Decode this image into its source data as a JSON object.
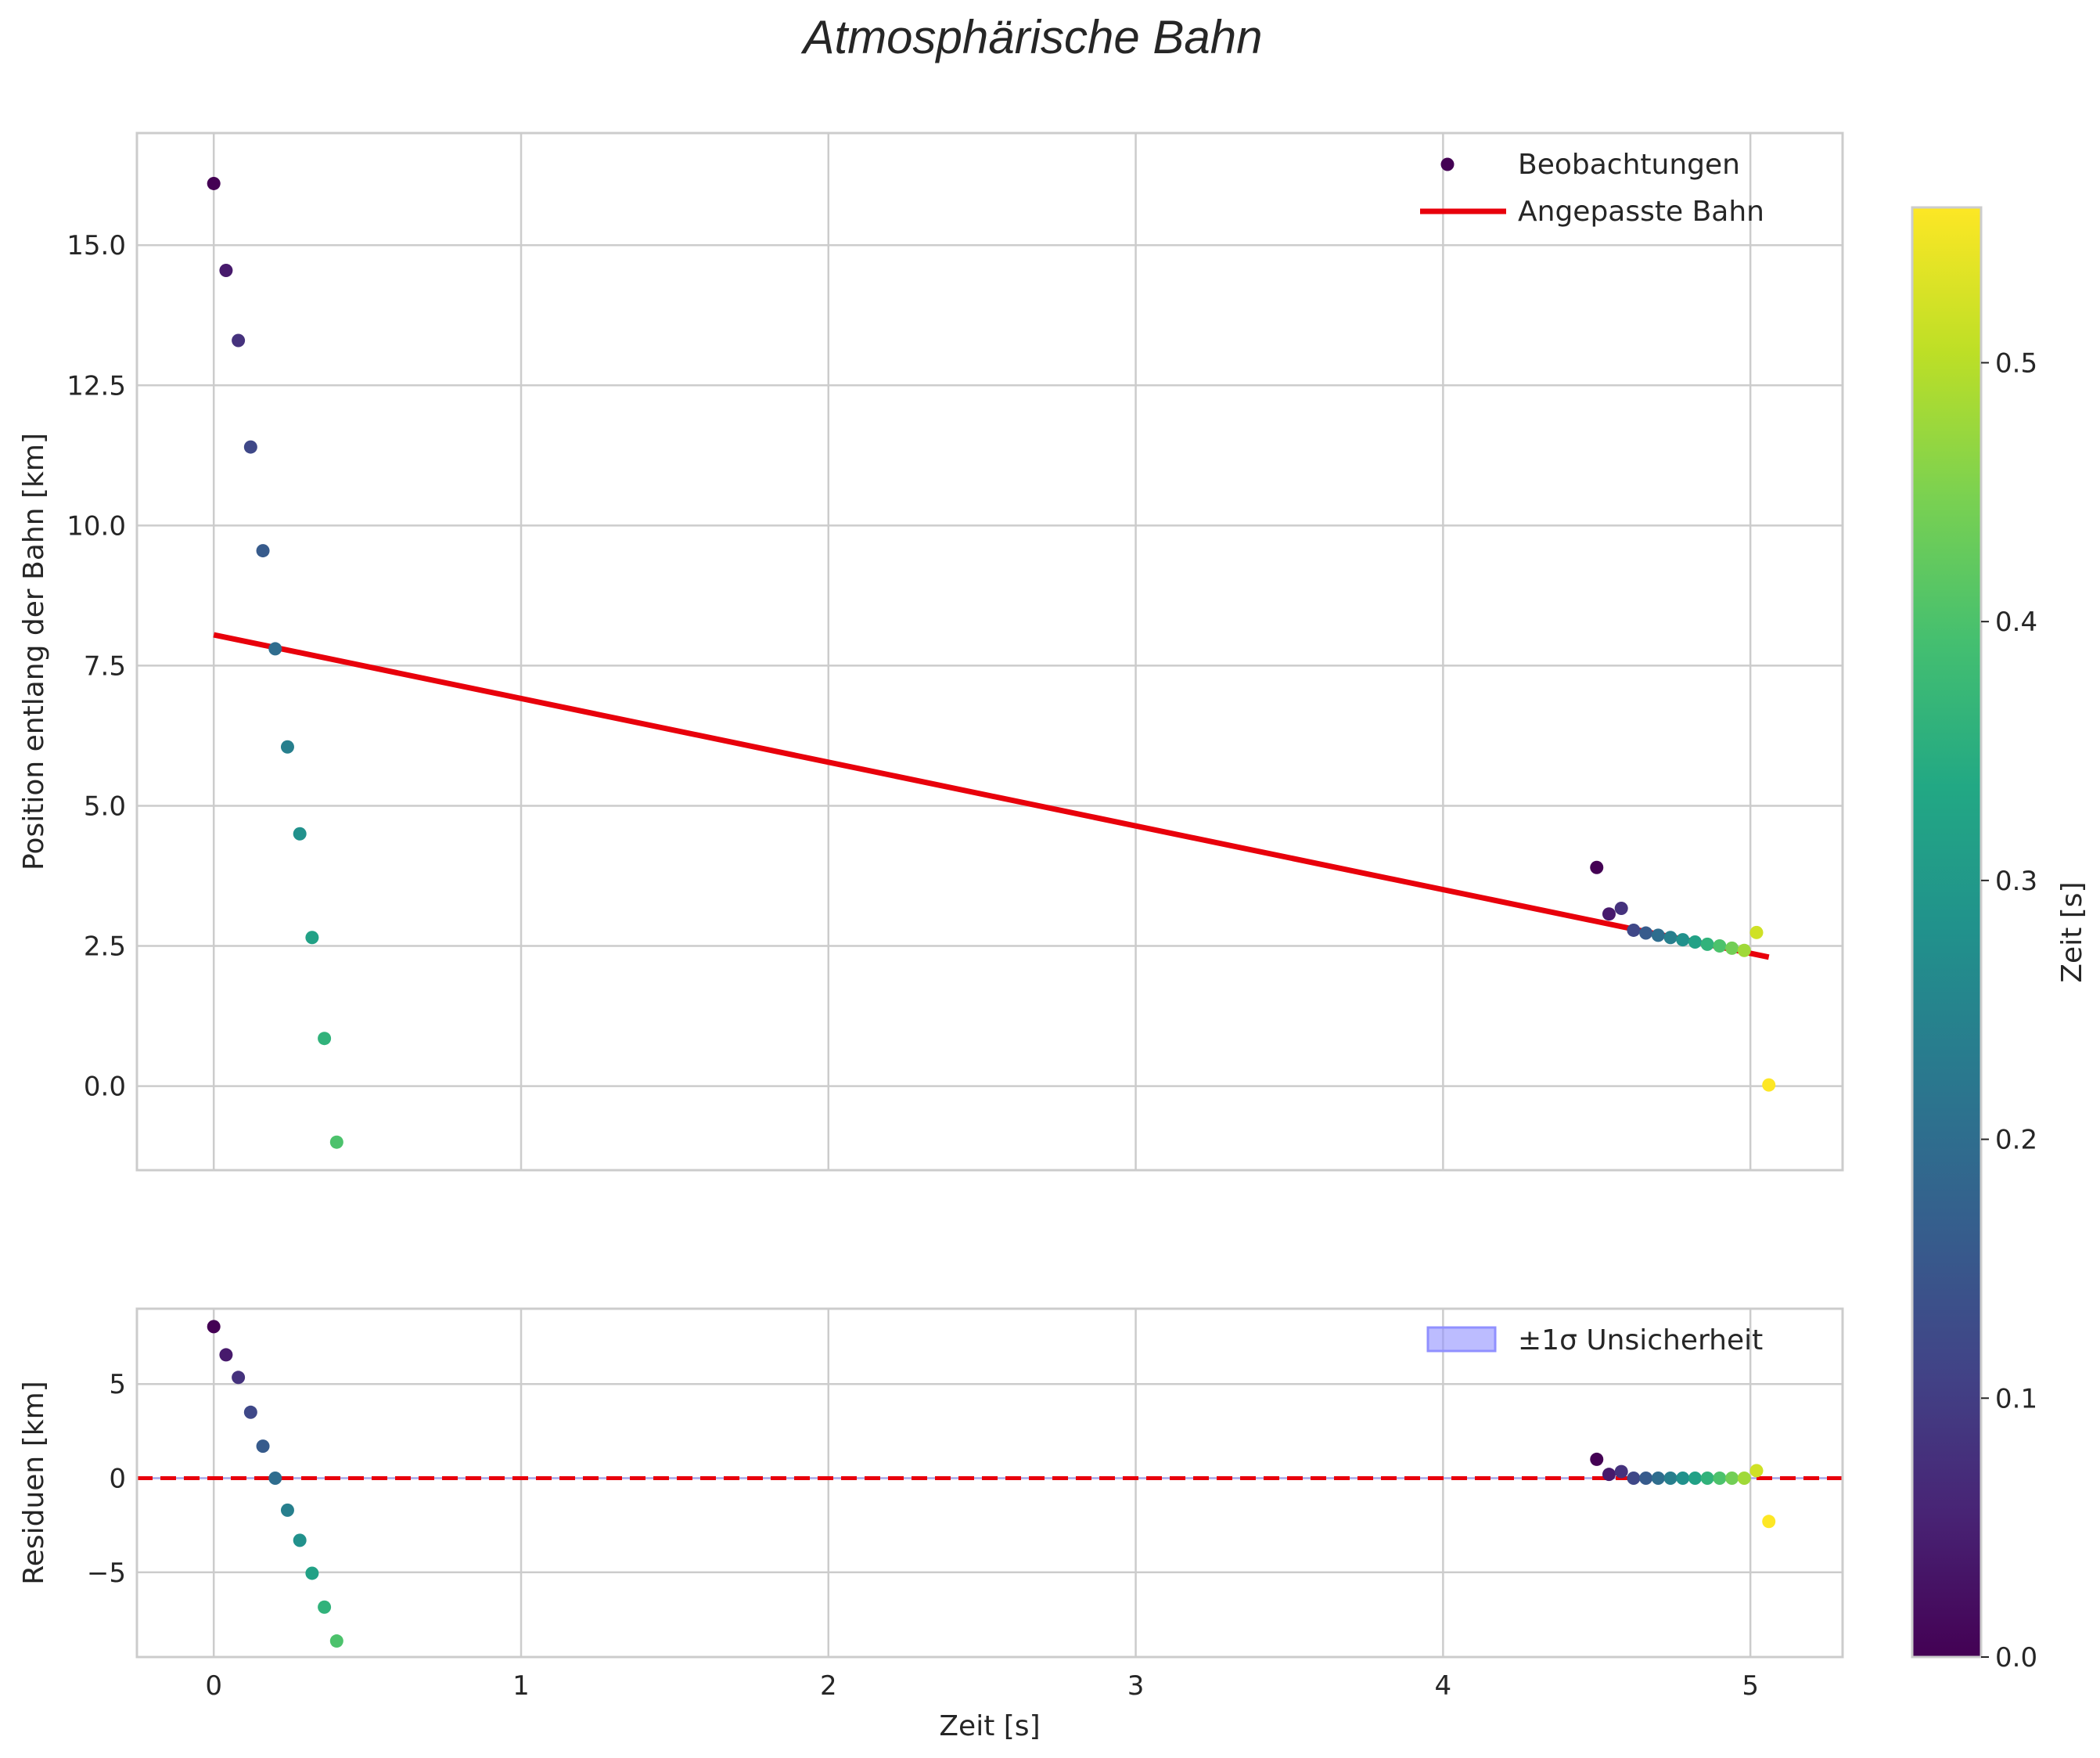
{
  "title": "Atmosphärische Bahn",
  "chart_data": [
    {
      "id": "main",
      "type": "scatter",
      "xlabel": "",
      "ylabel": "Position entlang der Bahn [km]",
      "xlim": [
        -0.25,
        5.3
      ],
      "ylim": [
        -1.5,
        17.0
      ],
      "xticks": [
        0,
        1,
        2,
        3,
        4,
        5
      ],
      "yticks": [
        0.0,
        2.5,
        5.0,
        7.5,
        10.0,
        12.5,
        15.0
      ],
      "ytick_labels": [
        "0.0",
        "2.5",
        "5.0",
        "7.5",
        "10.0",
        "12.5",
        "15.0"
      ],
      "grid": true,
      "legend": {
        "position": "top-right",
        "entries": [
          {
            "label": "Beobachtungen",
            "kind": "marker",
            "color": "#440154"
          },
          {
            "label": "Angepasste Bahn",
            "kind": "line",
            "color": "#e8000b"
          }
        ]
      },
      "fit_line": {
        "name": "Angepasste Bahn",
        "color": "#e8000b",
        "x": [
          0.0,
          5.06
        ],
        "y": [
          8.05,
          2.3
        ]
      },
      "series": [
        {
          "name": "Beobachtungen",
          "colormap": "viridis",
          "points": [
            {
              "x": 0.0,
              "y": 16.1,
              "c": 0.0
            },
            {
              "x": 0.04,
              "y": 14.55,
              "c": 0.04
            },
            {
              "x": 0.08,
              "y": 13.3,
              "c": 0.08
            },
            {
              "x": 0.12,
              "y": 11.4,
              "c": 0.12
            },
            {
              "x": 0.16,
              "y": 9.55,
              "c": 0.16
            },
            {
              "x": 0.2,
              "y": 7.8,
              "c": 0.2
            },
            {
              "x": 0.24,
              "y": 6.05,
              "c": 0.24
            },
            {
              "x": 0.28,
              "y": 4.5,
              "c": 0.28
            },
            {
              "x": 0.32,
              "y": 2.65,
              "c": 0.32
            },
            {
              "x": 0.36,
              "y": 0.85,
              "c": 0.36
            },
            {
              "x": 0.4,
              "y": -1.0,
              "c": 0.4
            },
            {
              "x": 4.5,
              "y": 3.9,
              "c": 0.0
            },
            {
              "x": 4.54,
              "y": 3.07,
              "c": 0.04
            },
            {
              "x": 4.58,
              "y": 3.17,
              "c": 0.08
            },
            {
              "x": 4.62,
              "y": 2.78,
              "c": 0.12
            },
            {
              "x": 4.66,
              "y": 2.73,
              "c": 0.16
            },
            {
              "x": 4.7,
              "y": 2.69,
              "c": 0.2
            },
            {
              "x": 4.74,
              "y": 2.65,
              "c": 0.24
            },
            {
              "x": 4.78,
              "y": 2.61,
              "c": 0.28
            },
            {
              "x": 4.82,
              "y": 2.57,
              "c": 0.32
            },
            {
              "x": 4.86,
              "y": 2.53,
              "c": 0.36
            },
            {
              "x": 4.9,
              "y": 2.5,
              "c": 0.4
            },
            {
              "x": 4.94,
              "y": 2.46,
              "c": 0.44
            },
            {
              "x": 4.98,
              "y": 2.42,
              "c": 0.48
            },
            {
              "x": 5.02,
              "y": 2.74,
              "c": 0.52
            },
            {
              "x": 5.06,
              "y": 0.02,
              "c": 0.56
            }
          ]
        }
      ]
    },
    {
      "id": "residuals",
      "type": "scatter",
      "xlabel": "Zeit [s]",
      "ylabel": "Residuen [km]",
      "xlim": [
        -0.25,
        5.3
      ],
      "ylim": [
        -9.5,
        9.0
      ],
      "xticks": [
        0,
        1,
        2,
        3,
        4,
        5
      ],
      "yticks": [
        -5,
        0,
        5
      ],
      "ytick_labels": [
        "−5",
        "0",
        "5"
      ],
      "grid": true,
      "zero_line": {
        "y": 0,
        "color": "#e8000b",
        "style": "dashed"
      },
      "uncertainty_band": {
        "label": "±1σ Unsicherheit",
        "sigma": 0.05,
        "color": "#9090ff"
      },
      "legend": {
        "position": "top-right",
        "entries": [
          {
            "label": "±1σ Unsicherheit",
            "kind": "patch",
            "color": "#9090ff"
          }
        ]
      },
      "series": [
        {
          "name": "Residuen",
          "colormap": "viridis",
          "points": [
            {
              "x": 0.0,
              "y": 8.05,
              "c": 0.0
            },
            {
              "x": 0.04,
              "y": 6.55,
              "c": 0.04
            },
            {
              "x": 0.08,
              "y": 5.35,
              "c": 0.08
            },
            {
              "x": 0.12,
              "y": 3.5,
              "c": 0.12
            },
            {
              "x": 0.16,
              "y": 1.7,
              "c": 0.16
            },
            {
              "x": 0.2,
              "y": 0.0,
              "c": 0.2
            },
            {
              "x": 0.24,
              "y": -1.7,
              "c": 0.24
            },
            {
              "x": 0.28,
              "y": -3.3,
              "c": 0.28
            },
            {
              "x": 0.32,
              "y": -5.05,
              "c": 0.32
            },
            {
              "x": 0.36,
              "y": -6.85,
              "c": 0.36
            },
            {
              "x": 0.4,
              "y": -8.65,
              "c": 0.4
            },
            {
              "x": 4.5,
              "y": 1.0,
              "c": 0.0
            },
            {
              "x": 4.54,
              "y": 0.2,
              "c": 0.04
            },
            {
              "x": 4.58,
              "y": 0.35,
              "c": 0.08
            },
            {
              "x": 4.62,
              "y": 0.0,
              "c": 0.12
            },
            {
              "x": 4.66,
              "y": 0.0,
              "c": 0.16
            },
            {
              "x": 4.7,
              "y": 0.0,
              "c": 0.2
            },
            {
              "x": 4.74,
              "y": 0.0,
              "c": 0.24
            },
            {
              "x": 4.78,
              "y": 0.0,
              "c": 0.28
            },
            {
              "x": 4.82,
              "y": 0.0,
              "c": 0.32
            },
            {
              "x": 4.86,
              "y": 0.0,
              "c": 0.36
            },
            {
              "x": 4.9,
              "y": 0.0,
              "c": 0.4
            },
            {
              "x": 4.94,
              "y": 0.0,
              "c": 0.44
            },
            {
              "x": 4.98,
              "y": 0.0,
              "c": 0.48
            },
            {
              "x": 5.02,
              "y": 0.4,
              "c": 0.52
            },
            {
              "x": 5.06,
              "y": -2.3,
              "c": 0.56
            }
          ]
        }
      ]
    }
  ],
  "colorbar": {
    "label": "Zeit [s]",
    "colormap": "viridis",
    "range": [
      0.0,
      0.56
    ],
    "ticks": [
      0.0,
      0.1,
      0.2,
      0.3,
      0.4,
      0.5
    ],
    "tick_labels": [
      "0.0",
      "0.1",
      "0.2",
      "0.3",
      "0.4",
      "0.5"
    ]
  }
}
